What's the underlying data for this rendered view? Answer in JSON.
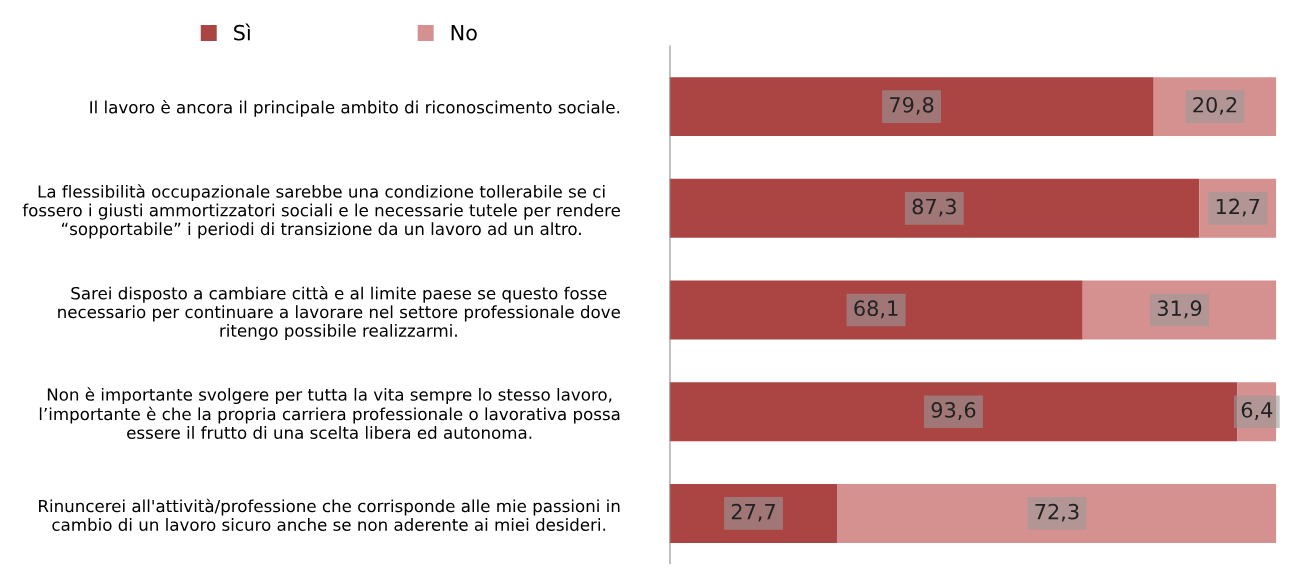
{
  "chart_data": {
    "type": "bar",
    "orientation": "horizontal",
    "stacked": true,
    "legend": "top left",
    "grid": false,
    "categories": [
      "Il lavoro è ancora il principale ambito di riconoscimento sociale.",
      "La flessibilità occupazionale sarebbe una condizione tollerabile se ci\nfossero i giusti ammortizzatori sociali e le necessarie tutele per rendere\n“sopportabile” i periodi di transizione da un lavoro ad un altro.",
      "Sarei disposto a cambiare città e al limite paese se questo fosse\nnecessario per continuare a lavorare nel settore professionale dove\nritengo possibile realizzarmi.",
      "Non è importante svolgere per tutta la vita sempre lo stesso lavoro,\nl’importante è che la propria carriera professionale o lavorativa possa\nessere il frutto di una scelta libera ed autonoma.",
      "Rinuncerei all'attività/professione che corrisponde alle mie passioni in\ncambio di un lavoro sicuro anche se non aderente ai miei desideri."
    ],
    "series": [
      {
        "name": "Sì",
        "color": "#aa4543",
        "values": [
          79.8,
          87.3,
          68.1,
          93.6,
          27.7
        ],
        "value_labels": [
          "79,8",
          "87,3",
          "68,1",
          "93,6",
          "27,7"
        ]
      },
      {
        "name": "No",
        "color": "#d4918f",
        "values": [
          20.2,
          12.7,
          31.9,
          6.4,
          72.3
        ],
        "value_labels": [
          "20,2",
          "12,7",
          "31,9",
          "6,4",
          "72,3"
        ]
      }
    ]
  }
}
